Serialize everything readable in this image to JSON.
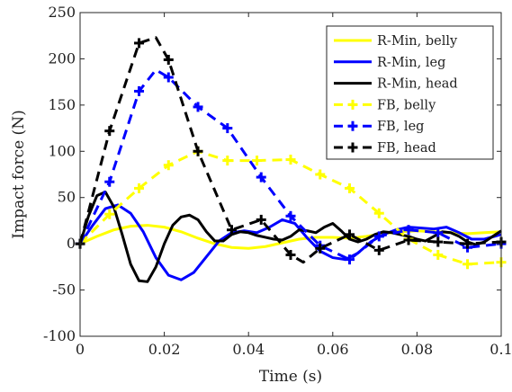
{
  "chart_data": {
    "type": "line",
    "xlabel": "Time (s)",
    "ylabel": "Impact force (N)",
    "xlim": [
      0,
      0.1
    ],
    "ylim": [
      -100,
      250
    ],
    "xticks": [
      0,
      0.02,
      0.04,
      0.06,
      0.08,
      0.1
    ],
    "xtick_labels": [
      "0",
      "0.02",
      "0.04",
      "0.06",
      "0.08",
      "0.1"
    ],
    "yticks": [
      -100,
      -50,
      0,
      50,
      100,
      150,
      200,
      250
    ],
    "ytick_labels": [
      "-100",
      "-50",
      "0",
      "50",
      "100",
      "150",
      "200",
      "250"
    ],
    "grid": false,
    "legend_position": "top-right",
    "series": [
      {
        "name": "R-Min, belly",
        "color": "#FFFF00",
        "style": "solid",
        "marker": "none",
        "x": [
          0,
          0.004,
          0.008,
          0.012,
          0.016,
          0.02,
          0.024,
          0.028,
          0.032,
          0.036,
          0.04,
          0.044,
          0.048,
          0.052,
          0.056,
          0.06,
          0.064,
          0.068,
          0.072,
          0.076,
          0.08,
          0.084,
          0.088,
          0.092,
          0.096,
          0.1
        ],
        "y": [
          0,
          8,
          15,
          19,
          20,
          18,
          13,
          6,
          0,
          -4,
          -5,
          -3,
          1,
          5,
          7,
          7,
          6,
          8,
          11,
          13,
          14,
          13,
          12,
          11,
          12,
          13
        ]
      },
      {
        "name": "R-Min, leg",
        "color": "#0000FF",
        "style": "solid",
        "marker": "none",
        "x": [
          0,
          0.003,
          0.006,
          0.009,
          0.012,
          0.015,
          0.018,
          0.021,
          0.024,
          0.027,
          0.03,
          0.033,
          0.036,
          0.039,
          0.042,
          0.045,
          0.048,
          0.051,
          0.054,
          0.057,
          0.06,
          0.063,
          0.066,
          0.069,
          0.072,
          0.075,
          0.078,
          0.081,
          0.084,
          0.087,
          0.09,
          0.093,
          0.096,
          0.1
        ],
        "y": [
          0,
          20,
          38,
          42,
          33,
          13,
          -15,
          -34,
          -39,
          -31,
          -14,
          3,
          12,
          14,
          12,
          18,
          26,
          22,
          6,
          -8,
          -15,
          -17,
          -10,
          2,
          10,
          15,
          18,
          17,
          16,
          18,
          12,
          5,
          5,
          10
        ]
      },
      {
        "name": "R-Min, head",
        "color": "#000000",
        "style": "solid",
        "marker": "none",
        "x": [
          0,
          0.002,
          0.004,
          0.006,
          0.008,
          0.01,
          0.012,
          0.014,
          0.016,
          0.018,
          0.02,
          0.022,
          0.024,
          0.026,
          0.028,
          0.03,
          0.032,
          0.034,
          0.036,
          0.038,
          0.04,
          0.042,
          0.044,
          0.046,
          0.048,
          0.05,
          0.052,
          0.054,
          0.056,
          0.058,
          0.06,
          0.062,
          0.064,
          0.066,
          0.068,
          0.07,
          0.072,
          0.074,
          0.076,
          0.078,
          0.08,
          0.082,
          0.084,
          0.086,
          0.088,
          0.09,
          0.092,
          0.094,
          0.096,
          0.098,
          0.1
        ],
        "y": [
          0,
          30,
          52,
          56,
          40,
          10,
          -22,
          -40,
          -41,
          -25,
          0,
          20,
          29,
          31,
          26,
          13,
          3,
          3,
          10,
          13,
          12,
          9,
          7,
          5,
          4,
          8,
          15,
          14,
          12,
          18,
          22,
          14,
          5,
          2,
          5,
          10,
          13,
          12,
          10,
          8,
          5,
          3,
          8,
          13,
          12,
          8,
          2,
          -1,
          2,
          8,
          14
        ]
      },
      {
        "name": "FB, belly",
        "color": "#FFFF00",
        "style": "dashed",
        "marker": "plus",
        "x": [
          0,
          0.007,
          0.014,
          0.021,
          0.028,
          0.035,
          0.042,
          0.05,
          0.057,
          0.064,
          0.071,
          0.078,
          0.085,
          0.092,
          0.1
        ],
        "y": [
          0,
          32,
          60,
          85,
          100,
          90,
          90,
          91,
          75,
          60,
          33,
          5,
          -12,
          -22,
          -20
        ],
        "marker_x": [
          0,
          0.007,
          0.014,
          0.021,
          0.028,
          0.035,
          0.042,
          0.05,
          0.057,
          0.064,
          0.071,
          0.078,
          0.085,
          0.092,
          0.1
        ],
        "marker_y": [
          0,
          32,
          60,
          85,
          100,
          90,
          90,
          91,
          75,
          60,
          33,
          5,
          -12,
          -22,
          -20
        ]
      },
      {
        "name": "FB, leg",
        "color": "#0000FF",
        "style": "dashed",
        "marker": "plus",
        "x": [
          0,
          0.007,
          0.014,
          0.018,
          0.021,
          0.028,
          0.035,
          0.043,
          0.05,
          0.057,
          0.064,
          0.071,
          0.078,
          0.085,
          0.092,
          0.1
        ],
        "y": [
          0,
          67,
          165,
          188,
          180,
          148,
          125,
          72,
          30,
          -2,
          -17,
          8,
          15,
          12,
          -4,
          0
        ],
        "marker_x": [
          0,
          0.007,
          0.014,
          0.021,
          0.028,
          0.035,
          0.043,
          0.05,
          0.057,
          0.064,
          0.071,
          0.078,
          0.085,
          0.092,
          0.1
        ],
        "marker_y": [
          0,
          67,
          165,
          180,
          148,
          125,
          72,
          30,
          -2,
          -17,
          8,
          15,
          12,
          -4,
          0
        ]
      },
      {
        "name": "FB, head",
        "color": "#000000",
        "style": "dashed",
        "marker": "plus",
        "x": [
          0,
          0.007,
          0.014,
          0.018,
          0.021,
          0.028,
          0.036,
          0.043,
          0.05,
          0.053,
          0.057,
          0.064,
          0.071,
          0.078,
          0.085,
          0.092,
          0.1
        ],
        "y": [
          0,
          122,
          217,
          223,
          199,
          100,
          15,
          26,
          -12,
          -20,
          -5,
          10,
          -7,
          4,
          2,
          0,
          2
        ],
        "marker_x": [
          0,
          0.007,
          0.014,
          0.021,
          0.028,
          0.036,
          0.043,
          0.05,
          0.057,
          0.064,
          0.071,
          0.078,
          0.085,
          0.092,
          0.1
        ],
        "marker_y": [
          0,
          122,
          217,
          199,
          100,
          15,
          26,
          -12,
          -5,
          10,
          -7,
          4,
          2,
          0,
          2
        ]
      }
    ]
  }
}
